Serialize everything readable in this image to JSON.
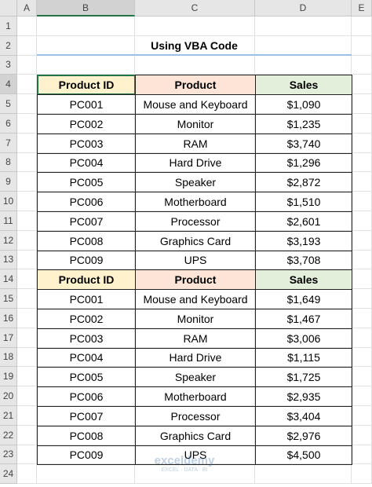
{
  "column_headers": [
    "A",
    "B",
    "C",
    "D",
    "E"
  ],
  "row_numbers": [
    "1",
    "2",
    "3",
    "4",
    "5",
    "6",
    "7",
    "8",
    "9",
    "10",
    "11",
    "12",
    "13",
    "14",
    "15",
    "16",
    "17",
    "18",
    "19",
    "20",
    "21",
    "22",
    "23",
    "24"
  ],
  "title": "Using VBA Code",
  "tables": [
    {
      "header": [
        "Product ID",
        "Product",
        "Sales"
      ],
      "rows": [
        [
          "PC001",
          "Mouse and Keyboard",
          "$1,090"
        ],
        [
          "PC002",
          "Monitor",
          "$1,235"
        ],
        [
          "PC003",
          "RAM",
          "$3,740"
        ],
        [
          "PC004",
          "Hard Drive",
          "$1,296"
        ],
        [
          "PC005",
          "Speaker",
          "$2,872"
        ],
        [
          "PC006",
          "Motherboard",
          "$1,510"
        ],
        [
          "PC007",
          "Processor",
          "$2,601"
        ],
        [
          "PC008",
          "Graphics Card",
          "$3,193"
        ],
        [
          "PC009",
          "UPS",
          "$3,708"
        ]
      ]
    },
    {
      "header": [
        "Product ID",
        "Product",
        "Sales"
      ],
      "rows": [
        [
          "PC001",
          "Mouse and Keyboard",
          "$1,649"
        ],
        [
          "PC002",
          "Monitor",
          "$1,467"
        ],
        [
          "PC003",
          "RAM",
          "$3,006"
        ],
        [
          "PC004",
          "Hard Drive",
          "$1,115"
        ],
        [
          "PC005",
          "Speaker",
          "$1,725"
        ],
        [
          "PC006",
          "Motherboard",
          "$2,935"
        ],
        [
          "PC007",
          "Processor",
          "$3,404"
        ],
        [
          "PC008",
          "Graphics Card",
          "$2,976"
        ],
        [
          "PC009",
          "UPS",
          "$4,500"
        ]
      ]
    }
  ],
  "watermark": {
    "brand": "exceldemy",
    "tagline": "EXCEL · DATA · BI"
  }
}
